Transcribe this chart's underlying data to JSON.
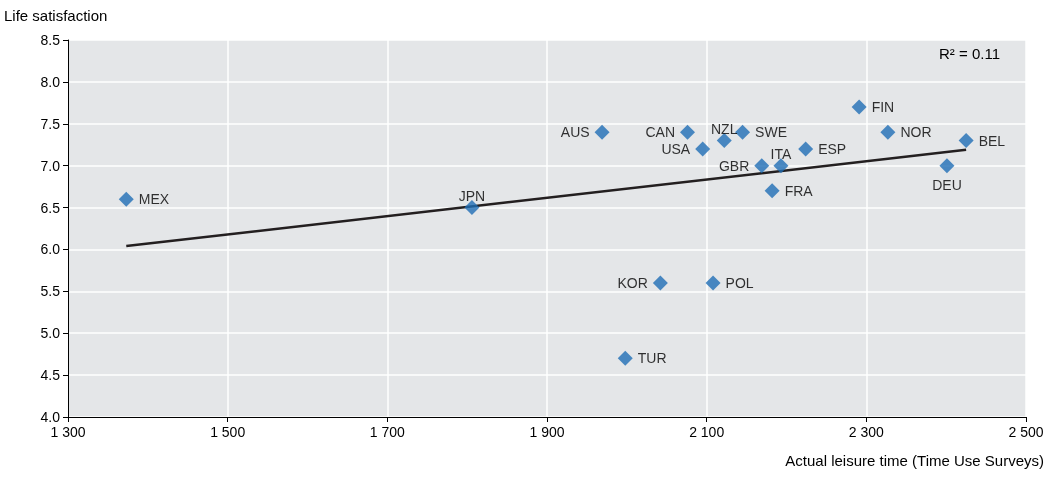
{
  "chart_data": {
    "type": "scatter",
    "xlabel": "Actual leisure time (Time Use Surveys)",
    "ylabel": "Life satisfaction",
    "annotations": [
      "R² = 0.11"
    ],
    "marker": "diamond",
    "grid": true,
    "legend": false,
    "xlim": [
      1300,
      2500
    ],
    "xticks": [
      {
        "value": 1300,
        "label": "1 300"
      },
      {
        "value": 1500,
        "label": "1 500"
      },
      {
        "value": 1700,
        "label": "1 700"
      },
      {
        "value": 1900,
        "label": "1 900"
      },
      {
        "value": 2100,
        "label": "2 100"
      },
      {
        "value": 2300,
        "label": "2 300"
      },
      {
        "value": 2500,
        "label": "2 500"
      }
    ],
    "ylim": [
      4,
      8.5
    ],
    "yticks": [
      {
        "value": 4,
        "label": "4.0"
      },
      {
        "value": 4.5,
        "label": "4.5"
      },
      {
        "value": 5,
        "label": "5.0"
      },
      {
        "value": 5.5,
        "label": "5.5"
      },
      {
        "value": 6,
        "label": "6.0"
      },
      {
        "value": 6.5,
        "label": "6.5"
      },
      {
        "value": 7,
        "label": "7.0"
      },
      {
        "value": 7.5,
        "label": "7.5"
      },
      {
        "value": 8,
        "label": "8.0"
      },
      {
        "value": 8.5,
        "label": "8.5"
      }
    ],
    "series": [
      {
        "type": "line",
        "marker": "none",
        "color": "#231f20",
        "x": [
          1373,
          2425
        ],
        "values": [
          6.04,
          7.19
        ]
      },
      {
        "name": "MEX",
        "color": "#1f6eb5",
        "x": [
          1373
        ],
        "values": [
          6.6
        ]
      },
      {
        "name": "JPN",
        "color": "#1f6eb5",
        "x": [
          1806
        ],
        "values": [
          6.5
        ]
      },
      {
        "name": "AUS",
        "color": "#1f6eb5",
        "x": [
          1969
        ],
        "values": [
          7.4
        ]
      },
      {
        "name": "CAN",
        "color": "#1f6eb5",
        "x": [
          2076
        ],
        "values": [
          7.4
        ]
      },
      {
        "name": "USA",
        "color": "#1f6eb5",
        "x": [
          2095
        ],
        "values": [
          7.2
        ]
      },
      {
        "name": "NZL",
        "color": "#1f6eb5",
        "x": [
          2122
        ],
        "values": [
          7.3
        ]
      },
      {
        "name": "SWE",
        "color": "#1f6eb5",
        "x": [
          2145
        ],
        "values": [
          7.4
        ]
      },
      {
        "name": "GBR",
        "color": "#1f6eb5",
        "x": [
          2169
        ],
        "values": [
          7.0
        ]
      },
      {
        "name": "ITA",
        "color": "#1f6eb5",
        "x": [
          2193
        ],
        "values": [
          7.0
        ]
      },
      {
        "name": "FRA",
        "color": "#1f6eb5",
        "x": [
          2182
        ],
        "values": [
          6.7
        ]
      },
      {
        "name": "ESP",
        "color": "#1f6eb5",
        "x": [
          2224
        ],
        "values": [
          7.2
        ]
      },
      {
        "name": "FIN",
        "color": "#1f6eb5",
        "x": [
          2291
        ],
        "values": [
          7.7
        ]
      },
      {
        "name": "NOR",
        "color": "#1f6eb5",
        "x": [
          2327
        ],
        "values": [
          7.4
        ]
      },
      {
        "name": "BEL",
        "color": "#1f6eb5",
        "x": [
          2425
        ],
        "values": [
          7.3
        ]
      },
      {
        "name": "DEU",
        "color": "#1f6eb5",
        "x": [
          2401
        ],
        "values": [
          7.0
        ]
      },
      {
        "name": "KOR",
        "color": "#1f6eb5",
        "x": [
          2042
        ],
        "values": [
          5.6
        ]
      },
      {
        "name": "POL",
        "color": "#1f6eb5",
        "x": [
          2108
        ],
        "values": [
          5.6
        ]
      },
      {
        "name": "TUR",
        "color": "#1f6eb5",
        "x": [
          1998
        ],
        "values": [
          4.7
        ]
      }
    ]
  }
}
